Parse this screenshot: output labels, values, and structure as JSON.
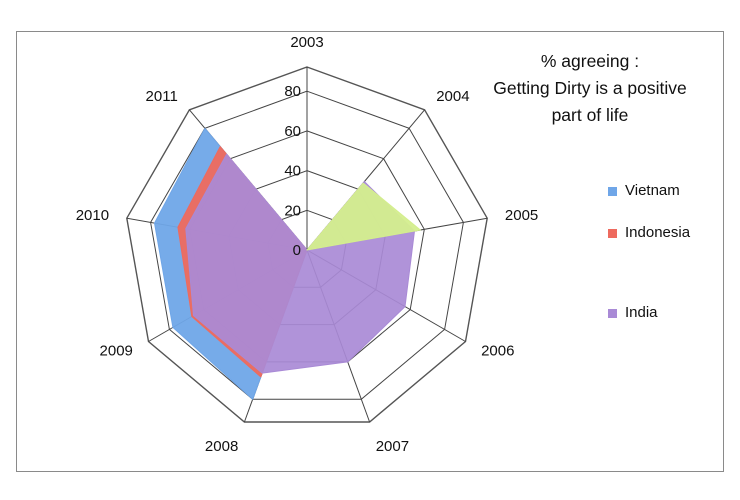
{
  "chart_data": {
    "type": "radar",
    "title": [
      "% agreeing :",
      "Getting Dirty is a positive",
      "part of life"
    ],
    "categories": [
      "2003",
      "2004",
      "2005",
      "2006",
      "2007",
      "2008",
      "2009",
      "2010",
      "2011"
    ],
    "radial_ticks": [
      "0",
      "20",
      "40",
      "60",
      "80"
    ],
    "rlim": [
      0,
      80
    ],
    "grid": true,
    "legend_position": "right",
    "series": [
      {
        "name": "Vietnam",
        "color": "#6fa6e8",
        "values": [
          0,
          0,
          0,
          0,
          0,
          80,
          78,
          78,
          80
        ]
      },
      {
        "name": "Indonesia",
        "color": "#ee6a5e",
        "values": [
          0,
          0,
          0,
          0,
          0,
          68,
          67,
          66,
          68
        ]
      },
      {
        "name": "India",
        "color": "#a98ad6",
        "values": [
          0,
          45,
          55,
          57,
          60,
          66,
          66,
          62,
          63
        ]
      },
      {
        "name": "",
        "color": "#d4ee8e",
        "values": [
          0,
          44,
          58,
          0,
          0,
          0,
          0,
          0,
          0
        ]
      }
    ]
  }
}
